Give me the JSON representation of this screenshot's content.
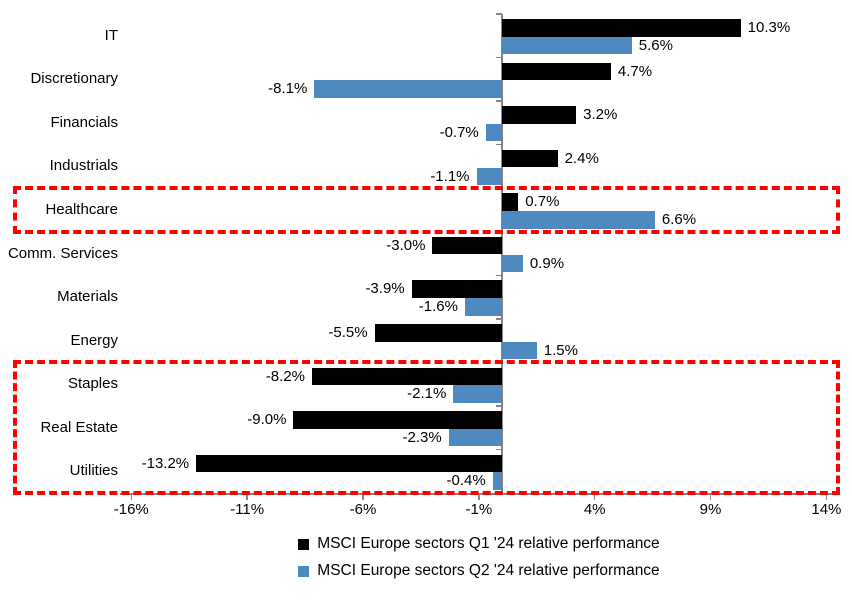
{
  "chart_data": {
    "type": "bar",
    "orientation": "horizontal",
    "title": "",
    "categories": [
      "IT",
      "Discretionary",
      "Financials",
      "Industrials",
      "Healthcare",
      "Comm. Services",
      "Materials",
      "Energy",
      "Staples",
      "Real Estate",
      "Utilities"
    ],
    "series": [
      {
        "name": "MSCI Europe sectors Q1 '24 relative performance",
        "color": "#000000",
        "values": [
          10.3,
          4.7,
          3.2,
          2.4,
          0.7,
          -3.0,
          -3.9,
          -5.5,
          -8.2,
          -9.0,
          -13.2
        ]
      },
      {
        "name": "MSCI Europe sectors Q2 '24 relative performance",
        "color": "#4E89C0",
        "values": [
          5.6,
          -8.1,
          -0.7,
          -1.1,
          6.6,
          0.9,
          -1.6,
          1.5,
          -2.1,
          -2.3,
          -0.4
        ]
      }
    ],
    "value_label_suffix": "%",
    "x_ticks": [
      -16,
      -11,
      -6,
      -1,
      4,
      9,
      14
    ],
    "x_tick_labels": [
      "-16%",
      "-11%",
      "-6%",
      "-1%",
      "4%",
      "9%",
      "14%"
    ],
    "xlim": [
      -16.5,
      14.5
    ],
    "grid": false,
    "legend_position": "bottom",
    "axis_color": "#858585",
    "highlight_color": "#FF0000",
    "highlight_boxes": [
      {
        "rows": [
          "Healthcare"
        ],
        "from_row": 4,
        "to_row": 4
      },
      {
        "rows": [
          "Staples",
          "Real Estate",
          "Utilities"
        ],
        "from_row": 8,
        "to_row": 10
      }
    ]
  }
}
